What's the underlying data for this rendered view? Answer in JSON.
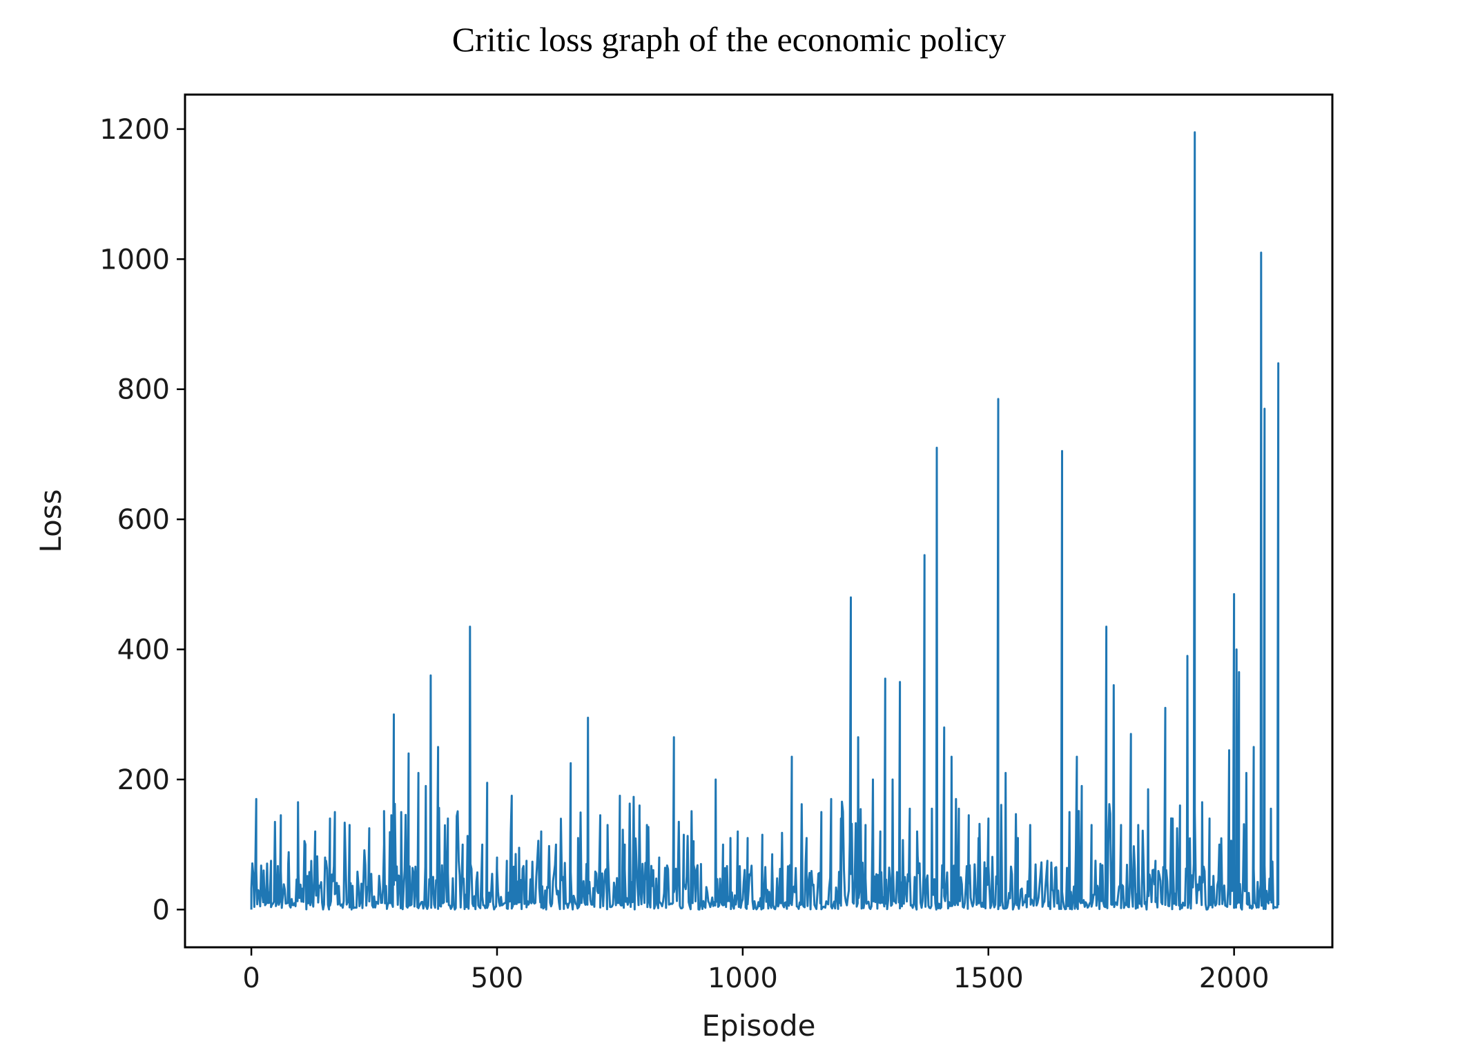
{
  "chart_data": {
    "type": "line",
    "title": "Critic loss graph of the economic policy",
    "xlabel": "Episode",
    "ylabel": "Loss",
    "xlim": [
      -135,
      2200
    ],
    "ylim": [
      -58,
      1253
    ],
    "xticks": [
      0,
      500,
      1000,
      1500,
      2000
    ],
    "yticks": [
      0,
      200,
      400,
      600,
      800,
      1000,
      1200
    ],
    "grid": false,
    "legend": "none",
    "series": [
      {
        "color": "#1f77b4",
        "baseline": 12,
        "noise": 35,
        "peaks": [
          [
            0,
            0
          ],
          [
            5,
            30
          ],
          [
            10,
            170
          ],
          [
            25,
            60
          ],
          [
            40,
            75
          ],
          [
            60,
            145
          ],
          [
            75,
            70
          ],
          [
            95,
            165
          ],
          [
            110,
            100
          ],
          [
            130,
            120
          ],
          [
            150,
            80
          ],
          [
            160,
            140
          ],
          [
            170,
            150
          ],
          [
            200,
            130
          ],
          [
            240,
            125
          ],
          [
            270,
            100
          ],
          [
            285,
            145
          ],
          [
            290,
            300
          ],
          [
            305,
            150
          ],
          [
            320,
            240
          ],
          [
            340,
            210
          ],
          [
            355,
            190
          ],
          [
            365,
            360
          ],
          [
            380,
            250
          ],
          [
            400,
            140
          ],
          [
            430,
            100
          ],
          [
            445,
            435
          ],
          [
            470,
            100
          ],
          [
            480,
            195
          ],
          [
            500,
            80
          ],
          [
            520,
            75
          ],
          [
            530,
            175
          ],
          [
            545,
            95
          ],
          [
            560,
            75
          ],
          [
            590,
            120
          ],
          [
            620,
            100
          ],
          [
            650,
            225
          ],
          [
            665,
            110
          ],
          [
            685,
            295
          ],
          [
            710,
            145
          ],
          [
            725,
            130
          ],
          [
            750,
            175
          ],
          [
            760,
            100
          ],
          [
            790,
            160
          ],
          [
            805,
            130
          ],
          [
            830,
            80
          ],
          [
            860,
            265
          ],
          [
            880,
            115
          ],
          [
            900,
            105
          ],
          [
            915,
            70
          ],
          [
            945,
            200
          ],
          [
            960,
            100
          ],
          [
            975,
            110
          ],
          [
            990,
            120
          ],
          [
            1010,
            110
          ],
          [
            1040,
            115
          ],
          [
            1060,
            85
          ],
          [
            1080,
            110
          ],
          [
            1100,
            235
          ],
          [
            1130,
            110
          ],
          [
            1160,
            150
          ],
          [
            1180,
            170
          ],
          [
            1200,
            140
          ],
          [
            1220,
            480
          ],
          [
            1235,
            265
          ],
          [
            1250,
            130
          ],
          [
            1265,
            200
          ],
          [
            1280,
            120
          ],
          [
            1290,
            355
          ],
          [
            1305,
            200
          ],
          [
            1320,
            350
          ],
          [
            1340,
            155
          ],
          [
            1355,
            120
          ],
          [
            1370,
            545
          ],
          [
            1385,
            155
          ],
          [
            1395,
            710
          ],
          [
            1410,
            280
          ],
          [
            1425,
            235
          ],
          [
            1440,
            155
          ],
          [
            1460,
            145
          ],
          [
            1480,
            110
          ],
          [
            1500,
            140
          ],
          [
            1520,
            785
          ],
          [
            1535,
            210
          ],
          [
            1560,
            110
          ],
          [
            1585,
            130
          ],
          [
            1620,
            75
          ],
          [
            1650,
            705
          ],
          [
            1665,
            150
          ],
          [
            1680,
            235
          ],
          [
            1690,
            190
          ],
          [
            1710,
            130
          ],
          [
            1740,
            435
          ],
          [
            1755,
            345
          ],
          [
            1770,
            130
          ],
          [
            1790,
            270
          ],
          [
            1805,
            130
          ],
          [
            1825,
            185
          ],
          [
            1840,
            75
          ],
          [
            1860,
            310
          ],
          [
            1875,
            140
          ],
          [
            1890,
            160
          ],
          [
            1905,
            390
          ],
          [
            1920,
            1195
          ],
          [
            1935,
            165
          ],
          [
            1950,
            140
          ],
          [
            1970,
            100
          ],
          [
            1990,
            245
          ],
          [
            2000,
            485
          ],
          [
            2005,
            400
          ],
          [
            2010,
            365
          ],
          [
            2025,
            210
          ],
          [
            2040,
            250
          ],
          [
            2055,
            1010
          ],
          [
            2062,
            770
          ],
          [
            2075,
            155
          ],
          [
            2090,
            840
          ]
        ]
      }
    ]
  }
}
